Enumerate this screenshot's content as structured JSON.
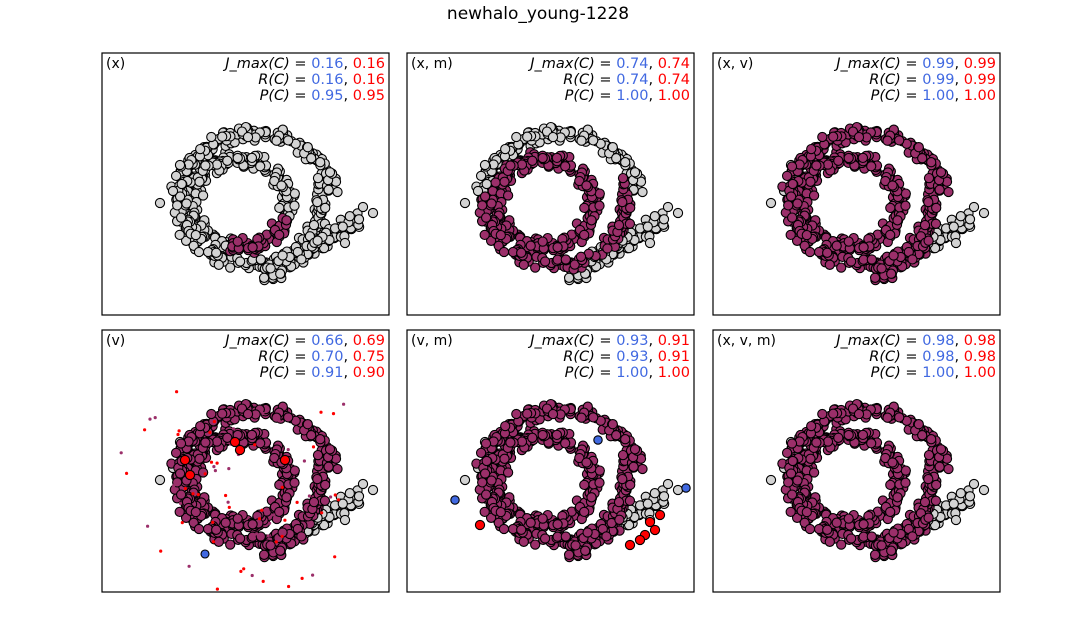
{
  "figure": {
    "title": "newhalo_young-1228"
  },
  "colors": {
    "blue": "#4169e1",
    "red": "#ff0000",
    "member": "#9b2f6a",
    "background_points": "#d3d3d3",
    "outline": "#000000"
  },
  "chart_data": [
    {
      "type": "scatter",
      "panel_label": "(x)",
      "metrics": [
        {
          "name": "J_max(C)",
          "blue": "0.16",
          "red": "0.16"
        },
        {
          "name": "R(C)",
          "blue": "0.16",
          "red": "0.16"
        },
        {
          "name": "P(C)",
          "blue": "0.95",
          "red": "0.95"
        }
      ],
      "member_arc_fraction": 0.16
    },
    {
      "type": "scatter",
      "panel_label": "(x, m)",
      "metrics": [
        {
          "name": "J_max(C)",
          "blue": "0.74",
          "red": "0.74"
        },
        {
          "name": "R(C)",
          "blue": "0.74",
          "red": "0.74"
        },
        {
          "name": "P(C)",
          "blue": "1.00",
          "red": "1.00"
        }
      ],
      "member_arc_fraction": 0.74
    },
    {
      "type": "scatter",
      "panel_label": "(x, v)",
      "metrics": [
        {
          "name": "J_max(C)",
          "blue": "0.99",
          "red": "0.99"
        },
        {
          "name": "R(C)",
          "blue": "0.99",
          "red": "0.99"
        },
        {
          "name": "P(C)",
          "blue": "1.00",
          "red": "1.00"
        }
      ],
      "member_arc_fraction": 0.99
    },
    {
      "type": "scatter",
      "panel_label": "(v)",
      "metrics": [
        {
          "name": "J_max(C)",
          "blue": "0.66",
          "red": "0.69"
        },
        {
          "name": "R(C)",
          "blue": "0.70",
          "red": "0.75"
        },
        {
          "name": "P(C)",
          "blue": "0.91",
          "red": "0.90"
        }
      ],
      "member_arc_fraction": 0.7
    },
    {
      "type": "scatter",
      "panel_label": "(v, m)",
      "metrics": [
        {
          "name": "J_max(C)",
          "blue": "0.93",
          "red": "0.91"
        },
        {
          "name": "R(C)",
          "blue": "0.93",
          "red": "0.91"
        },
        {
          "name": "P(C)",
          "blue": "1.00",
          "red": "1.00"
        }
      ],
      "member_arc_fraction": 0.93
    },
    {
      "type": "scatter",
      "panel_label": "(x, v, m)",
      "metrics": [
        {
          "name": "J_max(C)",
          "blue": "0.98",
          "red": "0.98"
        },
        {
          "name": "R(C)",
          "blue": "0.98",
          "red": "0.98"
        },
        {
          "name": "P(C)",
          "blue": "1.00",
          "red": "1.00"
        }
      ],
      "member_arc_fraction": 0.98
    }
  ]
}
